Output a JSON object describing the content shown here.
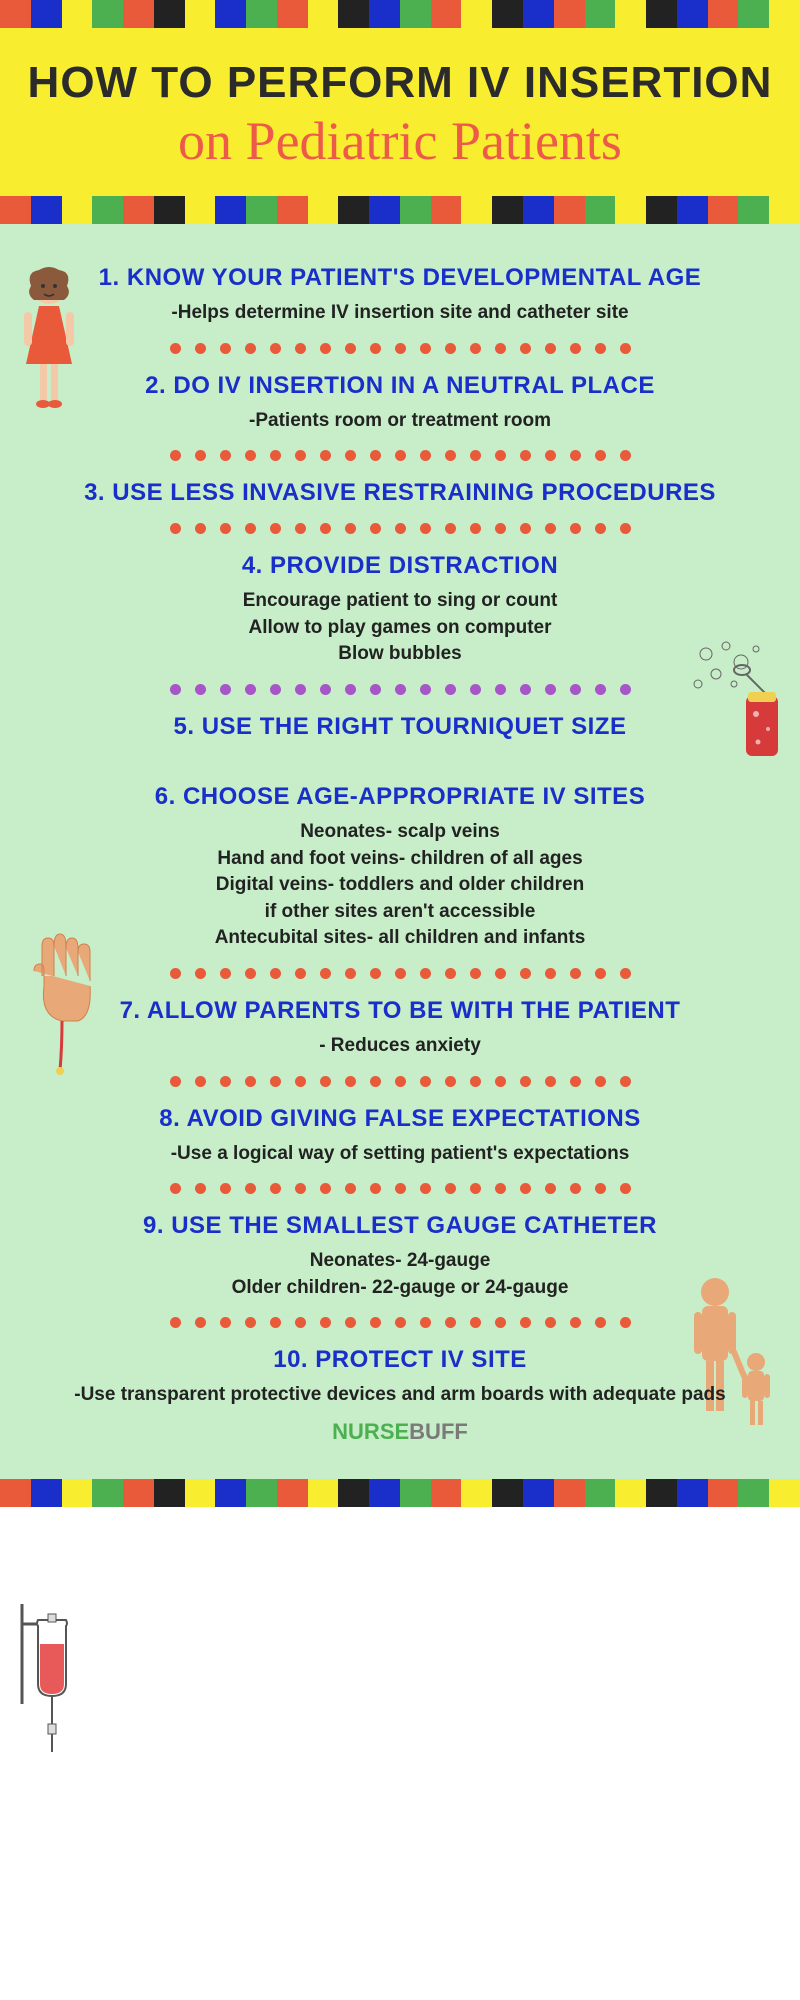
{
  "stripes": [
    "#e85a3a",
    "#1a2ec9",
    "#f8ee2f",
    "#4caf50",
    "#e85a3a",
    "#222",
    "#f8ee2f",
    "#1a2ec9",
    "#4caf50",
    "#e85a3a",
    "#f8ee2f",
    "#222",
    "#1a2ec9",
    "#4caf50",
    "#e85a3a",
    "#f8ee2f",
    "#222",
    "#1a2ec9",
    "#e85a3a",
    "#4caf50",
    "#f8ee2f",
    "#222",
    "#1a2ec9",
    "#e85a3a",
    "#4caf50",
    "#f8ee2f"
  ],
  "header": {
    "title_main": "HOW TO PERFORM IV INSERTION",
    "title_sub": "on Pediatric Patients",
    "bg_color": "#f8ee2f",
    "title_color": "#2b2b2b",
    "sub_color": "#ed5a4a"
  },
  "content_bg": "#c7eec9",
  "item_title_color": "#1a2ec9",
  "dot_color_orange": "#e85a3a",
  "dot_color_purple": "#a855c9",
  "items": [
    {
      "title": "1. KNOW YOUR PATIENT'S DEVELOPMENTAL AGE",
      "desc": "-Helps determine IV insertion site and catheter site",
      "dots_after": "orange"
    },
    {
      "title": "2. DO IV INSERTION IN A NEUTRAL PLACE",
      "desc": "-Patients room or treatment room",
      "dots_after": "orange"
    },
    {
      "title": "3. USE LESS INVASIVE RESTRAINING PROCEDURES",
      "desc": "",
      "dots_after": "orange"
    },
    {
      "title": "4. PROVIDE DISTRACTION",
      "desc": "Encourage patient to sing or count\nAllow to play games on computer\nBlow bubbles",
      "dots_after": "purple"
    },
    {
      "title": "5. USE THE RIGHT TOURNIQUET SIZE",
      "desc": "",
      "dots_after": "none"
    },
    {
      "title": "6. CHOOSE AGE-APPROPRIATE IV SITES",
      "desc": "Neonates- scalp veins\nHand and foot veins- children of all ages\nDigital veins- toddlers and older children\nif other sites aren't accessible\nAntecubital sites- all children and infants",
      "dots_after": "orange"
    },
    {
      "title": "7. ALLOW PARENTS TO BE WITH THE PATIENT",
      "desc": "- Reduces anxiety",
      "dots_after": "orange"
    },
    {
      "title": "8. AVOID GIVING FALSE EXPECTATIONS",
      "desc": "-Use a logical way of setting patient's expectations",
      "dots_after": "orange"
    },
    {
      "title": "9. USE THE SMALLEST GAUGE CATHETER",
      "desc": "Neonates- 24-gauge\nOlder children- 22-gauge or 24-gauge",
      "dots_after": "orange"
    },
    {
      "title": "10. PROTECT IV SITE",
      "desc": "-Use transparent protective devices and arm boards with adequate pads",
      "dots_after": "none"
    }
  ],
  "footer": {
    "part1": "NURSE",
    "part2": "BUFF"
  },
  "spacing": {
    "gap_5_to_6": 34
  }
}
